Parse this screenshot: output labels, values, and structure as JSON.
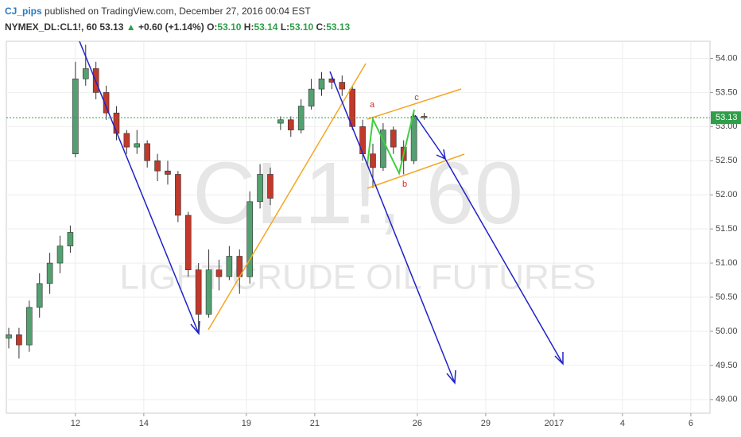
{
  "header": {
    "author": "CJ_pips",
    "published": "published on TradingView.com, December 27, 2016 00:04 EST",
    "symbol": "NYMEX_DL:CL1!, 60",
    "price": "53.13",
    "arrow": "▲",
    "change": "+0.60 (+1.14%)",
    "ohlc": [
      {
        "label": "O:",
        "value": "53.10"
      },
      {
        "label": "H:",
        "value": "53.14"
      },
      {
        "label": "L:",
        "value": "53.10"
      },
      {
        "label": "C:",
        "value": "53.13"
      }
    ]
  },
  "chart_data": {
    "type": "candlestick",
    "watermark": "CL1!, 60",
    "watermark_sub": "LIGHT CRUDE OIL FUTURES",
    "wave_labels": [
      "a",
      "b",
      "c"
    ],
    "up_color": "#53a070",
    "down_color": "#c0392b",
    "x": [
      -1.95,
      -1.65,
      -1.35,
      -1.05,
      -0.75,
      -0.45,
      -0.15,
      0,
      0.3,
      0.6,
      0.9,
      1.2,
      1.5,
      1.8,
      2.1,
      2.4,
      2.7,
      3.0,
      3.3,
      3.6,
      3.9,
      4.2,
      4.5,
      4.8,
      5.1,
      5.4,
      5.7,
      6.0,
      6.3,
      6.6,
      6.9,
      7.2,
      7.5,
      7.8,
      8.1,
      8.4,
      8.7,
      9.0,
      9.3,
      9.6,
      9.9,
      10.2
    ],
    "open": [
      49.9,
      49.95,
      49.8,
      50.35,
      50.7,
      51.0,
      51.25,
      52.6,
      53.7,
      53.85,
      53.5,
      53.2,
      52.9,
      52.7,
      52.75,
      52.5,
      52.35,
      52.3,
      51.7,
      50.9,
      50.25,
      50.9,
      50.8,
      51.1,
      50.8,
      51.9,
      52.3,
      53.05,
      53.1,
      52.95,
      53.3,
      53.55,
      53.7,
      53.65,
      53.55,
      53.0,
      52.6,
      52.4,
      52.95,
      52.7,
      52.5,
      53.15
    ],
    "high": [
      50.05,
      50.05,
      50.45,
      50.85,
      51.15,
      51.4,
      51.55,
      53.95,
      54.2,
      53.95,
      53.6,
      53.3,
      52.95,
      52.95,
      52.8,
      52.6,
      52.5,
      52.35,
      51.75,
      51.0,
      51.2,
      51.05,
      51.25,
      51.2,
      52.05,
      52.45,
      52.4,
      53.15,
      53.15,
      53.4,
      53.7,
      53.8,
      53.75,
      53.75,
      53.6,
      53.1,
      52.75,
      53.05,
      53.0,
      52.8,
      53.25,
      53.2
    ],
    "low": [
      49.75,
      49.6,
      49.7,
      50.2,
      50.55,
      50.85,
      51.15,
      52.55,
      53.6,
      53.4,
      53.1,
      52.8,
      52.6,
      52.6,
      52.4,
      52.2,
      52.15,
      51.6,
      50.8,
      50.0,
      50.2,
      50.6,
      50.75,
      50.55,
      50.7,
      51.8,
      51.85,
      52.95,
      52.85,
      52.9,
      53.25,
      53.45,
      53.55,
      53.45,
      52.95,
      52.5,
      52.1,
      52.35,
      52.6,
      52.3,
      52.45,
      53.1
    ],
    "close": [
      49.95,
      49.8,
      50.35,
      50.7,
      51.0,
      51.25,
      51.45,
      53.7,
      53.85,
      53.5,
      53.2,
      52.9,
      52.7,
      52.75,
      52.5,
      52.35,
      52.3,
      51.7,
      50.9,
      50.25,
      50.9,
      50.8,
      51.1,
      50.8,
      51.9,
      52.3,
      51.95,
      53.1,
      52.95,
      53.3,
      53.55,
      53.7,
      53.65,
      53.55,
      53.0,
      52.6,
      52.4,
      52.95,
      52.7,
      52.5,
      53.15,
      53.13
    ],
    "last_price": {
      "value": 53.13,
      "label": "53.13"
    },
    "last_color": "#2e9e48",
    "xlim": [
      -2.02,
      18.56
    ],
    "ylim": [
      48.8,
      54.25
    ],
    "xticks": [
      {
        "value": 0,
        "label": "12"
      },
      {
        "value": 2,
        "label": "14"
      },
      {
        "value": 5,
        "label": "19"
      },
      {
        "value": 7,
        "label": "21"
      },
      {
        "value": 10,
        "label": "26"
      },
      {
        "value": 12,
        "label": "29"
      },
      {
        "value": 14,
        "label": "2017"
      },
      {
        "value": 16,
        "label": "4"
      },
      {
        "value": 18,
        "label": "6"
      }
    ],
    "yticks": [
      {
        "value": 49,
        "label": "49.00"
      },
      {
        "value": 49.5,
        "label": "49.50"
      },
      {
        "value": 50,
        "label": "50.00"
      },
      {
        "value": 50.5,
        "label": "50.50"
      },
      {
        "value": 51,
        "label": "51.00"
      },
      {
        "value": 51.5,
        "label": "51.50"
      },
      {
        "value": 52,
        "label": "52.00"
      },
      {
        "value": 52.5,
        "label": "52.50"
      },
      {
        "value": 53,
        "label": "53.00"
      },
      {
        "value": 53.5,
        "label": "53.50"
      },
      {
        "value": 54,
        "label": "54.00"
      }
    ],
    "grid": true
  }
}
